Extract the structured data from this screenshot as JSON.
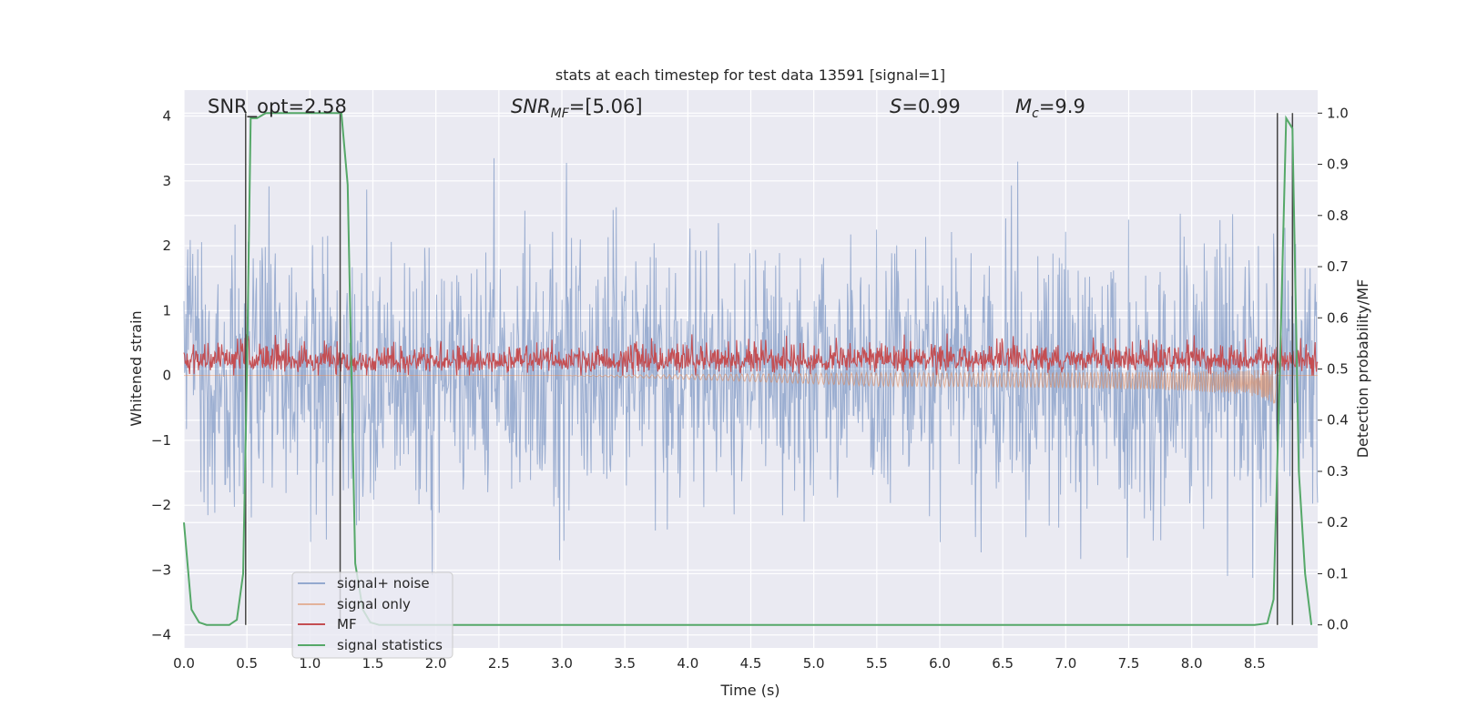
{
  "chart_data": {
    "type": "line",
    "title": "stats at each timestep for test data 13591 [signal=1]",
    "xlabel": "Time (s)",
    "ylabel_left": "Whitened strain",
    "ylabel_right": "Detection probability/MF",
    "xlim": [
      0.0,
      9.0
    ],
    "ylim_left": [
      -4.2,
      4.4
    ],
    "ylim_right": [
      -0.045,
      1.045
    ],
    "grid": true,
    "x_ticks": [
      "0.0",
      "0.5",
      "1.0",
      "1.5",
      "2.0",
      "2.5",
      "3.0",
      "3.5",
      "4.0",
      "4.5",
      "5.0",
      "5.5",
      "6.0",
      "6.5",
      "7.0",
      "7.5",
      "8.0",
      "8.5"
    ],
    "y_ticks_left": [
      "−4",
      "−3",
      "−2",
      "−1",
      "0",
      "1",
      "2",
      "3",
      "4"
    ],
    "y_ticks_right": [
      "0.0",
      "0.1",
      "0.2",
      "0.3",
      "0.4",
      "0.5",
      "0.6",
      "0.7",
      "0.8",
      "0.9",
      "1.0"
    ],
    "annotations": {
      "snr_opt": "SNR_opt=2.58",
      "snr_mf_main": "SNR",
      "snr_mf_sub": "MF",
      "snr_mf_rest": "=[5.06]",
      "s_main": "S",
      "s_rest": "=0.99",
      "mc_main": "M",
      "mc_sub": "c",
      "mc_rest": "=9.9"
    },
    "series": [
      {
        "name": "signal+ noise",
        "color": "#4c72b0",
        "axis": "left",
        "approx_range": [
          -3.8,
          4.0
        ]
      },
      {
        "name": "signal only",
        "color": "#dd8452",
        "axis": "left",
        "approx_range": [
          -0.3,
          0.05
        ]
      },
      {
        "name": "MF",
        "color": "#c44e52",
        "axis": "left",
        "approx_range": [
          0.0,
          0.8
        ]
      },
      {
        "name": "signal statistics",
        "color": "#55a868",
        "axis": "right",
        "x": [
          0.0,
          0.06,
          0.12,
          0.18,
          0.24,
          0.3,
          0.36,
          0.42,
          0.47,
          0.5,
          0.53,
          0.58,
          0.65,
          0.8,
          1.0,
          1.2,
          1.25,
          1.3,
          1.36,
          1.42,
          1.48,
          1.55,
          1.7,
          2.0,
          3.0,
          4.0,
          5.0,
          6.0,
          7.0,
          8.0,
          8.5,
          8.6,
          8.65,
          8.7,
          8.75,
          8.8,
          8.85,
          8.9,
          8.95
        ],
        "values": [
          0.2,
          0.03,
          0.005,
          0.0,
          0.0,
          0.0,
          0.0,
          0.01,
          0.1,
          0.5,
          0.99,
          0.99,
          1.0,
          1.0,
          1.0,
          1.0,
          1.0,
          0.86,
          0.12,
          0.03,
          0.005,
          0.0,
          0.0,
          0.0,
          0.0,
          0.0,
          0.0,
          0.0,
          0.0,
          0.0,
          0.0,
          0.003,
          0.05,
          0.5,
          0.99,
          0.97,
          0.3,
          0.1,
          0.0
        ]
      }
    ],
    "vertical_markers": [
      0.49,
      1.24,
      8.68,
      8.8
    ],
    "legend": {
      "position": "lower-left",
      "entries": [
        "signal+ noise",
        "signal only",
        "MF",
        "signal statistics"
      ]
    }
  }
}
